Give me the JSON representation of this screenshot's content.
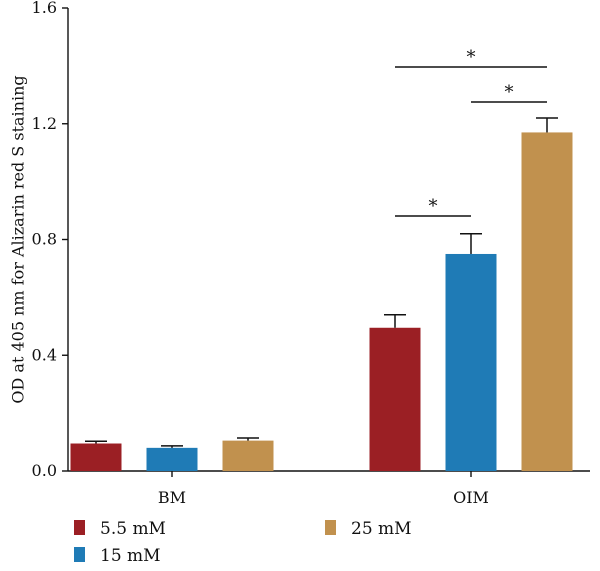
{
  "chart_data": {
    "type": "bar",
    "title": "",
    "xlabel": "",
    "ylabel": "OD at 405 nm for Alizarin red S staining",
    "ylim": [
      0.0,
      1.6
    ],
    "yticks": [
      {
        "value": 0.0,
        "label": "0.0"
      },
      {
        "value": 0.4,
        "label": "0.4"
      },
      {
        "value": 0.8,
        "label": "0.8"
      },
      {
        "value": 1.2,
        "label": "1.2"
      },
      {
        "value": 1.6,
        "label": "1.6"
      }
    ],
    "categories": [
      "BM",
      "OIM"
    ],
    "series": [
      {
        "name": "5.5 mM",
        "color": "#9b1f24",
        "values": [
          0.095,
          0.495
        ],
        "errors": [
          0.008,
          0.045
        ]
      },
      {
        "name": "15 mM",
        "color": "#1f7bb6",
        "values": [
          0.08,
          0.75
        ],
        "errors": [
          0.007,
          0.07
        ]
      },
      {
        "name": "25 mM",
        "color": "#c1914e",
        "values": [
          0.105,
          1.17
        ],
        "errors": [
          0.009,
          0.05
        ]
      }
    ],
    "grid": false,
    "legend_position": "bottom",
    "significance": [
      {
        "category": "OIM",
        "from_series": 0,
        "to_series": 1,
        "label": "*"
      },
      {
        "category": "OIM",
        "from_series": 1,
        "to_series": 2,
        "label": "*"
      },
      {
        "category": "OIM",
        "from_series": 0,
        "to_series": 2,
        "label": "*"
      }
    ]
  }
}
